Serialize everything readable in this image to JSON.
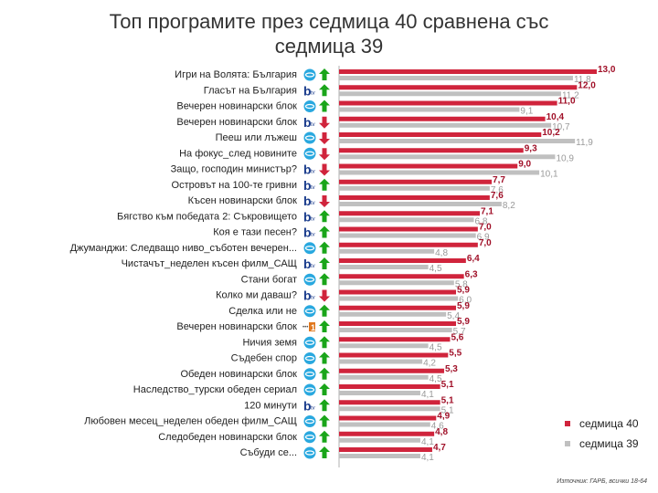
{
  "title_line1": "Топ програмите през седмица 40 сравнена със",
  "title_line2": "седмица 39",
  "source": "Източник: ГАРБ, всички 18-64",
  "colors": {
    "week40": "#d0243c",
    "week39": "#c0c0c0",
    "up": "#1aa51a",
    "down": "#d0243c",
    "btv": "#1a3c8c",
    "nova": "#29a8df"
  },
  "chart_data": {
    "type": "bar",
    "orientation": "horizontal",
    "xlim": [
      0,
      14
    ],
    "categories": [
      "Игри на Волята: България",
      "Гласът на България",
      "Вечерен новинарски блок",
      "Вечерен новинарски блок",
      "Пееш или лъжеш",
      "На фокус_след новините",
      "Защо, господин министър?",
      "Островът на 100-те гривни",
      "Късен новинарски блок",
      "Бягство към победата 2: Съкровището",
      "Коя е тази песен?",
      "Джуманджи: Следващо ниво_съботен вечерен...",
      "Чистачът_неделен късен филм_САЩ",
      "Стани богат",
      "Колко ми даваш?",
      "Сделка или не",
      "Вечерен новинарски блок",
      "Ничия земя",
      "Съдебен спор",
      "Обеден новинарски блок",
      "Наследство_турски обеден сериал",
      "120 минути",
      "Любовен месец_неделен обеден филм_САЩ",
      "Следобеден новинарски блок",
      "Събуди се..."
    ],
    "channels": [
      "nova",
      "btv",
      "nova",
      "btv",
      "nova",
      "nova",
      "btv",
      "btv",
      "btv",
      "btv",
      "btv",
      "nova",
      "btv",
      "nova",
      "btv",
      "nova",
      "bnt1",
      "nova",
      "nova",
      "nova",
      "nova",
      "btv",
      "nova",
      "nova",
      "nova"
    ],
    "trend": [
      "up",
      "up",
      "up",
      "down",
      "down",
      "down",
      "down",
      "up",
      "down",
      "up",
      "up",
      "up",
      "up",
      "up",
      "down",
      "up",
      "up",
      "up",
      "up",
      "up",
      "up",
      "up",
      "up",
      "up",
      "up"
    ],
    "series": [
      {
        "name": "седмица 40",
        "values": [
          13.0,
          12.0,
          11.0,
          10.4,
          10.2,
          9.3,
          9.0,
          7.7,
          7.6,
          7.1,
          7.0,
          7.0,
          6.4,
          6.3,
          5.9,
          5.9,
          5.9,
          5.6,
          5.5,
          5.3,
          5.1,
          5.1,
          4.9,
          4.8,
          4.7
        ],
        "labels": [
          "13,0",
          "12,0",
          "11,0",
          "10,4",
          "10,2",
          "9,3",
          "9,0",
          "7,7",
          "7,6",
          "7,1",
          "7,0",
          "7,0",
          "6,4",
          "6,3",
          "5,9",
          "5,9",
          "5,9",
          "5,6",
          "5,5",
          "5,3",
          "5,1",
          "5,1",
          "4,9",
          "4,8",
          "4,7"
        ]
      },
      {
        "name": "седмица 39",
        "values": [
          11.8,
          11.2,
          9.1,
          10.7,
          11.9,
          10.9,
          10.1,
          7.6,
          8.2,
          6.8,
          6.9,
          4.8,
          4.5,
          5.8,
          6.0,
          5.4,
          5.7,
          4.5,
          4.2,
          4.5,
          4.1,
          5.1,
          4.6,
          4.1,
          4.1
        ],
        "labels": [
          "11,8",
          "11,2",
          "9,1",
          "10,7",
          "11,9",
          "10,9",
          "10,1",
          "7,6",
          "8,2",
          "6,8",
          "6,9",
          "4,8",
          "4,5",
          "5,8",
          "6,0",
          "5,4",
          "5,7",
          "4,5",
          "4,2",
          "4,5",
          "4,1",
          "5,1",
          "4,6",
          "4,1",
          "4,1"
        ]
      }
    ],
    "channel_labels": {
      "btv": "btv",
      "nova": "nova",
      "bnt1": "1"
    },
    "legend": [
      "седмица 40",
      "седмица 39"
    ],
    "legend_position": "bottom-right"
  }
}
